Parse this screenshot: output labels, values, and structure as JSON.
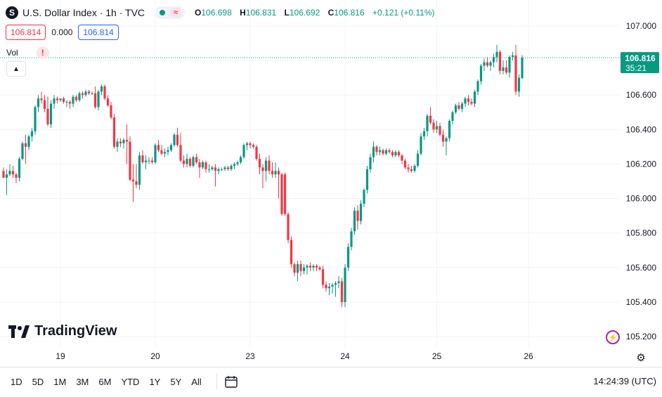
{
  "header": {
    "symbol_icon": "S",
    "title": "U.S. Dollar Index · 1h · TVC",
    "status_icons": [
      "market-dot-icon",
      "wave-icon"
    ],
    "ohlc": {
      "o_label": "O",
      "o": "106.698",
      "h_label": "H",
      "h": "106.831",
      "l_label": "L",
      "l": "106.692",
      "c_label": "C",
      "c": "106.816",
      "change": "+0.121 (+0.11%)"
    }
  },
  "price_boxes": {
    "bid": "106.814",
    "spread": "0.000",
    "ask": "106.814"
  },
  "volume": {
    "label": "Vol",
    "warning": "!"
  },
  "branding": {
    "name": "TradingView"
  },
  "price_label": {
    "value": "106.816",
    "countdown": "35:21"
  },
  "toolbar": {
    "ranges": [
      "1D",
      "5D",
      "1M",
      "3M",
      "6M",
      "YTD",
      "1Y",
      "5Y",
      "All"
    ],
    "clock": "14:24:39 (UTC)"
  },
  "colors": {
    "up": "#089981",
    "down": "#f23645",
    "grid": "#f0f3fa",
    "accent": "#2962ff"
  },
  "chart_data": {
    "type": "candlestick",
    "x_ticks": [
      "19",
      "20",
      "23",
      "24",
      "25",
      "26"
    ],
    "x_tick_bar_index": [
      18,
      48,
      78,
      108,
      137,
      166
    ],
    "y_ticks": [
      "107.000",
      "106.800",
      "106.600",
      "106.400",
      "106.200",
      "106.000",
      "105.800",
      "105.600",
      "105.400",
      "105.200"
    ],
    "ylim": [
      105.14,
      107.06
    ],
    "last_price": 106.816,
    "candles": [
      [
        106.16,
        106.18,
        106.12,
        106.12
      ],
      [
        106.12,
        106.17,
        106.02,
        106.14
      ],
      [
        106.14,
        106.2,
        106.13,
        106.16
      ],
      [
        106.16,
        106.19,
        106.12,
        106.14
      ],
      [
        106.14,
        106.15,
        106.09,
        106.12
      ],
      [
        106.12,
        106.24,
        106.1,
        106.23
      ],
      [
        106.23,
        106.33,
        106.22,
        106.32
      ],
      [
        106.32,
        106.37,
        106.2,
        106.3
      ],
      [
        106.3,
        106.37,
        106.28,
        106.36
      ],
      [
        106.36,
        106.41,
        106.33,
        106.39
      ],
      [
        106.39,
        106.54,
        106.37,
        106.53
      ],
      [
        106.53,
        106.6,
        106.5,
        106.58
      ],
      [
        106.58,
        106.62,
        106.55,
        106.57
      ],
      [
        106.57,
        106.6,
        106.5,
        106.52
      ],
      [
        106.52,
        106.59,
        106.42,
        106.43
      ],
      [
        106.43,
        106.57,
        106.41,
        106.55
      ],
      [
        106.55,
        106.6,
        106.52,
        106.58
      ],
      [
        106.58,
        106.59,
        106.55,
        106.57
      ],
      [
        106.57,
        106.58,
        106.56,
        106.58
      ],
      [
        106.58,
        106.59,
        106.55,
        106.56
      ],
      [
        106.56,
        106.57,
        106.53,
        106.56
      ],
      [
        106.56,
        106.57,
        106.52,
        106.55
      ],
      [
        106.55,
        106.6,
        106.53,
        106.59
      ],
      [
        106.59,
        106.6,
        106.56,
        106.57
      ],
      [
        106.57,
        106.62,
        106.56,
        106.61
      ],
      [
        106.61,
        106.62,
        106.58,
        106.6
      ],
      [
        106.6,
        106.63,
        106.59,
        106.62
      ],
      [
        106.62,
        106.63,
        106.6,
        106.61
      ],
      [
        106.61,
        106.62,
        106.6,
        106.61
      ],
      [
        106.61,
        106.65,
        106.52,
        106.53
      ],
      [
        106.53,
        106.63,
        106.51,
        106.62
      ],
      [
        106.62,
        106.66,
        106.6,
        106.65
      ],
      [
        106.65,
        106.66,
        106.57,
        106.58
      ],
      [
        106.58,
        106.6,
        106.53,
        106.54
      ],
      [
        106.54,
        106.56,
        106.46,
        106.47
      ],
      [
        106.47,
        106.49,
        106.29,
        106.3
      ],
      [
        106.3,
        106.35,
        106.27,
        106.33
      ],
      [
        106.33,
        106.35,
        106.3,
        106.32
      ],
      [
        106.32,
        106.35,
        106.29,
        106.34
      ],
      [
        106.34,
        106.43,
        106.2,
        106.33
      ],
      [
        106.33,
        106.36,
        106.1,
        106.11
      ],
      [
        106.11,
        106.2,
        105.98,
        106.1
      ],
      [
        106.1,
        106.2,
        106.06,
        106.08
      ],
      [
        106.08,
        106.27,
        106.05,
        106.25
      ],
      [
        106.25,
        106.28,
        106.2,
        106.21
      ],
      [
        106.21,
        106.25,
        106.17,
        106.22
      ],
      [
        106.22,
        106.24,
        106.2,
        106.22
      ],
      [
        106.22,
        106.24,
        106.2,
        106.21
      ],
      [
        106.21,
        106.32,
        106.2,
        106.31
      ],
      [
        106.31,
        106.34,
        106.27,
        106.28
      ],
      [
        106.28,
        106.31,
        106.25,
        106.26
      ],
      [
        106.26,
        106.29,
        106.24,
        106.27
      ],
      [
        106.27,
        106.3,
        106.25,
        106.28
      ],
      [
        106.28,
        106.32,
        106.27,
        106.31
      ],
      [
        106.31,
        106.38,
        106.3,
        106.37
      ],
      [
        106.37,
        106.41,
        106.3,
        106.31
      ],
      [
        106.31,
        106.38,
        106.21,
        106.22
      ],
      [
        106.22,
        106.25,
        106.18,
        106.2
      ],
      [
        106.2,
        106.26,
        106.18,
        106.23
      ],
      [
        106.23,
        106.24,
        106.18,
        106.19
      ],
      [
        106.19,
        106.25,
        106.18,
        106.24
      ],
      [
        106.24,
        106.26,
        106.2,
        106.21
      ],
      [
        106.21,
        106.23,
        106.12,
        106.18
      ],
      [
        106.18,
        106.22,
        106.17,
        106.21
      ],
      [
        106.21,
        106.22,
        106.15,
        106.17
      ],
      [
        106.17,
        106.2,
        106.15,
        106.17
      ],
      [
        106.17,
        106.19,
        106.16,
        106.18
      ],
      [
        106.18,
        106.2,
        106.07,
        106.16
      ],
      [
        106.16,
        106.18,
        106.14,
        106.17
      ],
      [
        106.17,
        106.18,
        106.16,
        106.17
      ],
      [
        106.17,
        106.19,
        106.16,
        106.18
      ],
      [
        106.18,
        106.19,
        106.16,
        106.17
      ],
      [
        106.17,
        106.2,
        106.16,
        106.19
      ],
      [
        106.19,
        106.21,
        106.17,
        106.2
      ],
      [
        106.2,
        106.22,
        106.19,
        106.21
      ],
      [
        106.21,
        106.25,
        106.2,
        106.24
      ],
      [
        106.24,
        106.32,
        106.23,
        106.31
      ],
      [
        106.31,
        106.33,
        106.28,
        106.32
      ],
      [
        106.32,
        106.33,
        106.29,
        106.31
      ],
      [
        106.31,
        106.32,
        106.29,
        106.3
      ],
      [
        106.3,
        106.31,
        106.22,
        106.23
      ],
      [
        106.23,
        106.26,
        106.14,
        106.18
      ],
      [
        106.18,
        106.2,
        106.06,
        106.16
      ],
      [
        106.16,
        106.24,
        106.1,
        106.22
      ],
      [
        106.22,
        106.25,
        106.14,
        106.16
      ],
      [
        106.16,
        106.21,
        106.12,
        106.14
      ],
      [
        106.14,
        106.21,
        106.12,
        106.16
      ],
      [
        106.16,
        106.18,
        106.0,
        106.14
      ],
      [
        106.14,
        106.15,
        105.9,
        105.91
      ],
      [
        106.14,
        106.15,
        105.9,
        105.91
      ],
      [
        105.91,
        105.92,
        105.74,
        105.76
      ],
      [
        105.76,
        105.78,
        105.6,
        105.62
      ],
      [
        105.62,
        105.63,
        105.55,
        105.57
      ],
      [
        105.57,
        105.64,
        105.52,
        105.62
      ],
      [
        105.62,
        105.64,
        105.55,
        105.58
      ],
      [
        105.58,
        105.62,
        105.56,
        105.6
      ],
      [
        105.6,
        105.62,
        105.56,
        105.61
      ],
      [
        105.61,
        105.63,
        105.58,
        105.6
      ],
      [
        105.6,
        105.62,
        105.58,
        105.61
      ],
      [
        105.61,
        105.62,
        105.58,
        105.6
      ],
      [
        105.6,
        105.61,
        105.58,
        105.59
      ],
      [
        105.59,
        105.61,
        105.48,
        105.5
      ],
      [
        105.5,
        105.52,
        105.46,
        105.48
      ],
      [
        105.48,
        105.51,
        105.44,
        105.49
      ],
      [
        105.49,
        105.51,
        105.45,
        105.5
      ],
      [
        105.5,
        105.52,
        105.43,
        105.51
      ],
      [
        105.51,
        105.55,
        105.48,
        105.52
      ],
      [
        105.52,
        105.54,
        105.37,
        105.4
      ],
      [
        105.4,
        105.62,
        105.37,
        105.6
      ],
      [
        105.6,
        105.74,
        105.58,
        105.72
      ],
      [
        105.72,
        105.83,
        105.7,
        105.81
      ],
      [
        105.81,
        105.95,
        105.79,
        105.93
      ],
      [
        105.93,
        105.96,
        105.82,
        105.87
      ],
      [
        105.87,
        105.99,
        105.85,
        105.97
      ],
      [
        105.97,
        106.06,
        105.95,
        106.05
      ],
      [
        106.05,
        106.19,
        106.03,
        106.17
      ],
      [
        106.17,
        106.26,
        106.15,
        106.24
      ],
      [
        106.24,
        106.33,
        106.21,
        106.3
      ],
      [
        106.3,
        106.31,
        106.25,
        106.27
      ],
      [
        106.27,
        106.3,
        106.25,
        106.28
      ],
      [
        106.28,
        106.29,
        106.25,
        106.26
      ],
      [
        106.26,
        106.29,
        106.25,
        106.28
      ],
      [
        106.28,
        106.29,
        106.26,
        106.27
      ],
      [
        106.27,
        106.28,
        106.24,
        106.25
      ],
      [
        106.25,
        106.28,
        106.24,
        106.27
      ],
      [
        106.27,
        106.28,
        106.24,
        106.25
      ],
      [
        106.25,
        106.26,
        106.2,
        106.22
      ],
      [
        106.22,
        106.23,
        106.17,
        106.18
      ],
      [
        106.18,
        106.2,
        106.15,
        106.17
      ],
      [
        106.17,
        106.19,
        106.15,
        106.16
      ],
      [
        106.16,
        106.2,
        106.15,
        106.19
      ],
      [
        106.19,
        106.28,
        106.18,
        106.26
      ],
      [
        106.26,
        106.38,
        106.25,
        106.36
      ],
      [
        106.36,
        106.41,
        106.34,
        106.39
      ],
      [
        106.39,
        106.49,
        106.36,
        106.48
      ],
      [
        106.48,
        106.53,
        106.43,
        106.44
      ],
      [
        106.44,
        106.46,
        106.38,
        106.4
      ],
      [
        106.4,
        106.45,
        106.38,
        106.42
      ],
      [
        106.42,
        106.44,
        106.36,
        106.37
      ],
      [
        106.37,
        106.4,
        106.3,
        106.33
      ],
      [
        106.33,
        106.36,
        106.25,
        106.35
      ],
      [
        106.35,
        106.46,
        106.33,
        106.45
      ],
      [
        106.45,
        106.51,
        106.43,
        106.5
      ],
      [
        106.5,
        106.55,
        106.49,
        106.54
      ],
      [
        106.54,
        106.56,
        106.51,
        106.52
      ],
      [
        106.52,
        106.56,
        106.5,
        106.55
      ],
      [
        106.55,
        106.59,
        106.53,
        106.58
      ],
      [
        106.58,
        106.6,
        106.54,
        106.56
      ],
      [
        106.56,
        106.58,
        106.54,
        106.55
      ],
      [
        106.55,
        106.63,
        106.53,
        106.62
      ],
      [
        106.62,
        106.69,
        106.6,
        106.68
      ],
      [
        106.68,
        106.78,
        106.66,
        106.77
      ],
      [
        106.77,
        106.81,
        106.74,
        106.79
      ],
      [
        106.79,
        106.82,
        106.76,
        106.77
      ],
      [
        106.77,
        106.8,
        106.74,
        106.79
      ],
      [
        106.79,
        106.84,
        106.76,
        106.82
      ],
      [
        106.82,
        106.89,
        106.79,
        106.85
      ],
      [
        106.85,
        106.86,
        106.72,
        106.74
      ],
      [
        106.74,
        106.8,
        106.72,
        106.76
      ],
      [
        106.76,
        106.8,
        106.72,
        106.73
      ],
      [
        106.73,
        106.83,
        106.7,
        106.82
      ],
      [
        106.82,
        106.85,
        106.8,
        106.83
      ],
      [
        106.83,
        106.89,
        106.6,
        106.62
      ],
      [
        106.62,
        106.72,
        106.59,
        106.7
      ],
      [
        106.698,
        106.831,
        106.692,
        106.816
      ]
    ]
  }
}
